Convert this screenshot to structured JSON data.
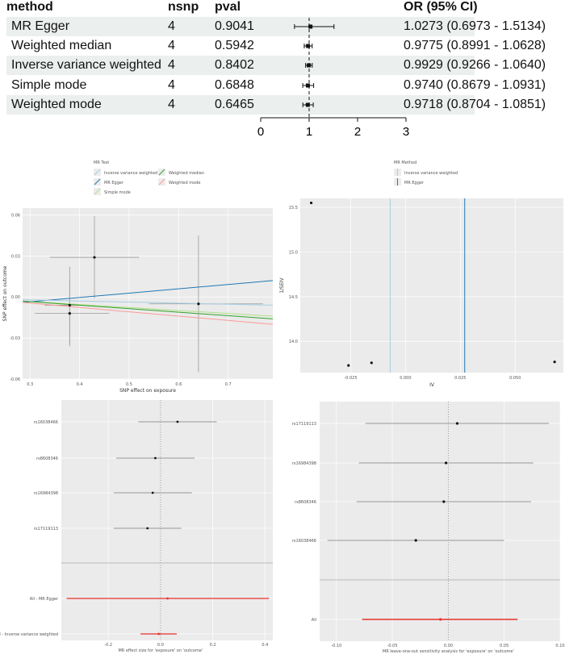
{
  "forest_table": {
    "headers": {
      "method": "method",
      "nsnp": "nsnp",
      "pval": "pval",
      "or": "OR (95% CI)"
    },
    "rows": [
      {
        "method": "MR Egger",
        "nsnp": "4",
        "pval": "0.9041",
        "or_text": "1.0273 (0.6973 - 1.5134)",
        "or": 1.0273,
        "lo": 0.6973,
        "hi": 1.5134
      },
      {
        "method": "Weighted median",
        "nsnp": "4",
        "pval": "0.5942",
        "or_text": "0.9775 (0.8991 - 1.0628)",
        "or": 0.9775,
        "lo": 0.8991,
        "hi": 1.0628
      },
      {
        "method": "Inverse variance weighted",
        "nsnp": "4",
        "pval": "0.8402",
        "or_text": "0.9929 (0.9266 - 1.0640)",
        "or": 0.9929,
        "lo": 0.9266,
        "hi": 1.064
      },
      {
        "method": "Simple mode",
        "nsnp": "4",
        "pval": "0.6848",
        "or_text": "0.9740 (0.8679 - 1.0931)",
        "or": 0.974,
        "lo": 0.8679,
        "hi": 1.0931
      },
      {
        "method": "Weighted mode",
        "nsnp": "4",
        "pval": "0.6465",
        "or_text": "0.9718 (0.8704 - 1.0851)",
        "or": 0.9718,
        "lo": 0.8704,
        "hi": 1.0851
      }
    ],
    "axis_ticks": [
      "0",
      "1",
      "2",
      "3"
    ],
    "xlim": [
      0,
      3
    ]
  },
  "chart_data": [
    {
      "type": "forest",
      "xlim": [
        0,
        3
      ],
      "reference_line": 1,
      "categories": [
        "MR Egger",
        "Weighted median",
        "Inverse variance weighted",
        "Simple mode",
        "Weighted mode"
      ],
      "values": [
        1.0273,
        0.9775,
        0.9929,
        0.974,
        0.9718
      ],
      "lower": [
        0.6973,
        0.8991,
        0.9266,
        0.8679,
        0.8704
      ],
      "upper": [
        1.5134,
        1.0628,
        1.064,
        1.0931,
        1.0851
      ]
    },
    {
      "type": "scatter",
      "xlabel": "SNP effect on exposure",
      "ylabel": "SNP effect on outcome",
      "xlim": [
        0.285,
        0.79
      ],
      "ylim": [
        -0.06,
        0.065
      ],
      "x_ticks": [
        "0.3",
        "0.4",
        "0.5",
        "0.6",
        "0.7"
      ],
      "y_ticks": [
        "0.06",
        "0.03",
        "0.00",
        "-0.03",
        "-0.06"
      ],
      "legend_title": "MR Test",
      "legend": [
        {
          "name": "Inverse variance weighted",
          "color": "#a6cee3"
        },
        {
          "name": "MR Egger",
          "color": "#1f78b4"
        },
        {
          "name": "Simple mode",
          "color": "#b2df8a"
        },
        {
          "name": "Weighted median",
          "color": "#33a02c"
        },
        {
          "name": "Weighted mode",
          "color": "#fb9a99"
        }
      ],
      "points": [
        {
          "x": 0.43,
          "y": 0.029,
          "xlo": 0.34,
          "xhi": 0.52,
          "ylo": -0.001,
          "yhi": 0.059
        },
        {
          "x": 0.38,
          "y": -0.006,
          "xlo": 0.33,
          "xhi": 0.43,
          "ylo": -0.034,
          "yhi": 0.022
        },
        {
          "x": 0.38,
          "y": -0.012,
          "xlo": 0.31,
          "xhi": 0.46,
          "ylo": -0.036,
          "yhi": 0.012
        },
        {
          "x": 0.64,
          "y": -0.005,
          "xlo": 0.54,
          "xhi": 0.77,
          "ylo": -0.055,
          "yhi": 0.045
        }
      ],
      "lines": [
        {
          "name": "MR Egger",
          "x0": 0.285,
          "y0": -0.004,
          "x1": 0.79,
          "y1": 0.012
        },
        {
          "name": "Inverse variance weighted",
          "x0": 0.285,
          "y0": -0.002,
          "x1": 0.79,
          "y1": -0.006
        },
        {
          "name": "Simple mode",
          "x0": 0.285,
          "y0": -0.003,
          "x1": 0.79,
          "y1": -0.014
        },
        {
          "name": "Weighted median",
          "x0": 0.285,
          "y0": -0.003,
          "x1": 0.79,
          "y1": -0.016
        },
        {
          "name": "Weighted mode",
          "x0": 0.285,
          "y0": -0.004,
          "x1": 0.79,
          "y1": -0.02
        }
      ]
    },
    {
      "type": "funnel",
      "xlabel": "IV",
      "ylabel": "1/SEIV",
      "xlim": [
        -0.048,
        0.072
      ],
      "ylim": [
        13.65,
        15.6
      ],
      "x_ticks": [
        "-0.025",
        "0.000",
        "0.025",
        "0.050"
      ],
      "y_ticks": [
        "15.5",
        "15.0",
        "14.5",
        "14.0"
      ],
      "legend_title": "MR Method",
      "legend": [
        {
          "name": "Inverse variance weighted",
          "color": "#a6cee3"
        },
        {
          "name": "MR Egger",
          "color": "#1f78b4"
        }
      ],
      "points": [
        {
          "x": -0.043,
          "y": 15.55
        },
        {
          "x": -0.026,
          "y": 13.73
        },
        {
          "x": -0.0155,
          "y": 13.76
        },
        {
          "x": 0.068,
          "y": 13.77
        }
      ],
      "vlines": [
        {
          "name": "Inverse variance weighted",
          "x": -0.007
        },
        {
          "name": "MR Egger",
          "x": 0.027
        }
      ]
    },
    {
      "type": "forest_single_snp",
      "xlabel": "MR effect size for 'exposure' on 'outcome'",
      "xlim": [
        -0.38,
        0.43
      ],
      "x_ticks": [
        "-0.2",
        "0.0",
        "0.2",
        "0.4"
      ],
      "snps": [
        {
          "label": "rs16038466",
          "b": 0.065,
          "lo": -0.085,
          "hi": 0.215
        },
        {
          "label": "rs8608346",
          "b": -0.02,
          "lo": -0.17,
          "hi": 0.13
        },
        {
          "label": "rs16984398",
          "b": -0.03,
          "lo": -0.18,
          "hi": 0.12
        },
        {
          "label": "rs17119113",
          "b": -0.05,
          "lo": -0.18,
          "hi": 0.08
        }
      ],
      "summary": [
        {
          "label": "All - MR Egger",
          "b": 0.027,
          "lo": -0.36,
          "hi": 0.415
        },
        {
          "label": "All - Inverse variance weighted",
          "b": -0.007,
          "lo": -0.077,
          "hi": 0.062
        }
      ]
    },
    {
      "type": "forest_leave_one_out",
      "xlabel": "MR leave-one-out sensitivity analysis for 'exposure' on 'outcome'",
      "xlim": [
        -0.115,
        0.1
      ],
      "x_ticks": [
        "-0.10",
        "-0.05",
        "0.00",
        "0.05",
        "0.10"
      ],
      "snps": [
        {
          "label": "rs17119113",
          "b": 0.008,
          "lo": -0.074,
          "hi": 0.09
        },
        {
          "label": "rs16984398",
          "b": -0.002,
          "lo": -0.08,
          "hi": 0.076
        },
        {
          "label": "rs8608346",
          "b": -0.004,
          "lo": -0.082,
          "hi": 0.074
        },
        {
          "label": "rs16038466",
          "b": -0.029,
          "lo": -0.108,
          "hi": 0.05
        }
      ],
      "summary": [
        {
          "label": "All",
          "b": -0.007,
          "lo": -0.077,
          "hi": 0.062
        }
      ]
    }
  ]
}
